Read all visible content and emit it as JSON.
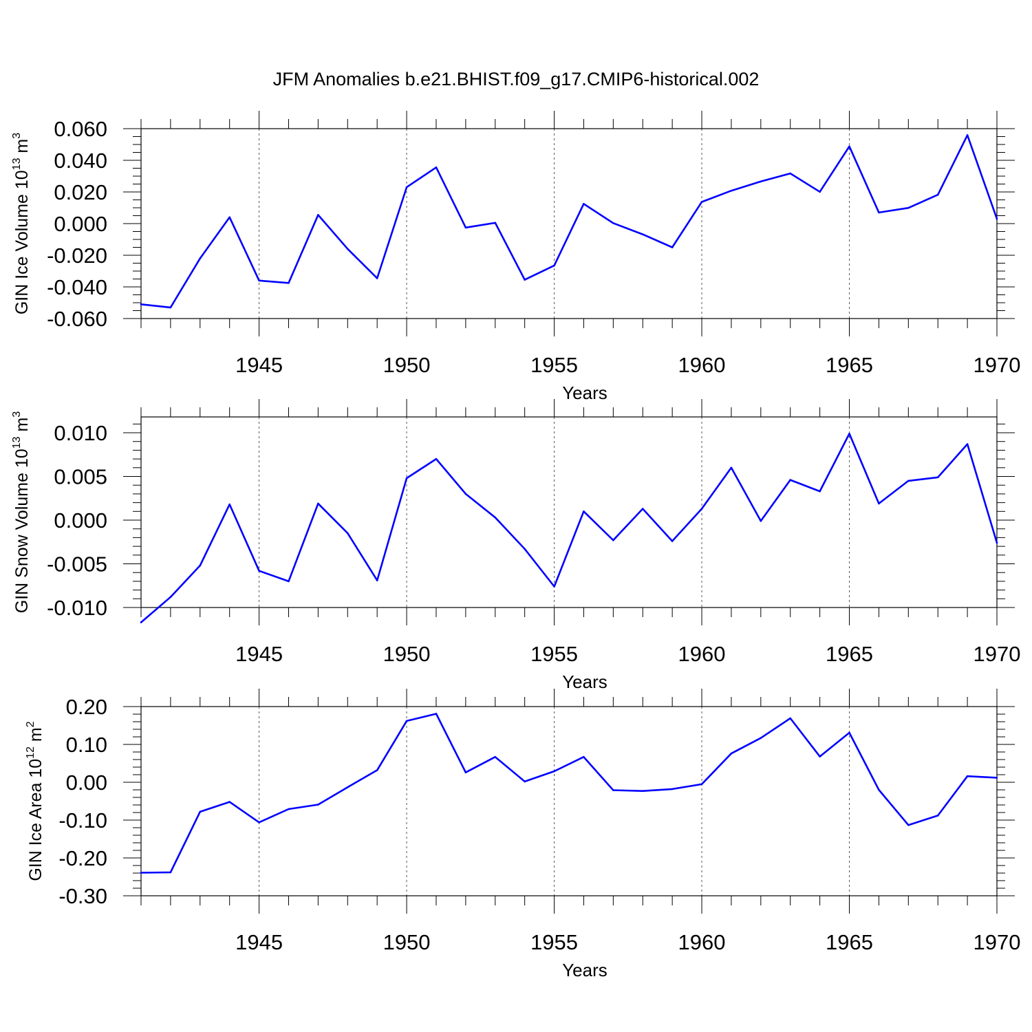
{
  "title": "JFM Anomalies b.e21.BHIST.f09_g17.CMIP6-historical.002",
  "colors": {
    "series": "#0000ff",
    "axis": "#000000",
    "grid": "#555555"
  },
  "chart_data": [
    {
      "type": "line",
      "xlabel": "Years",
      "ylabel": "GIN Ice Volume 10",
      "ylabel_exp": "13",
      "ylabel_unit": " m",
      "ylabel_unit_exp": "3",
      "xlim": [
        1941,
        1970
      ],
      "ylim": [
        -0.06,
        0.06
      ],
      "xticks": [
        1945,
        1950,
        1955,
        1960,
        1965,
        1970
      ],
      "xtick_labels": [
        "1945",
        "1950",
        "1955",
        "1960",
        "1965",
        "1970"
      ],
      "yticks": [
        -0.06,
        -0.04,
        -0.02,
        0.0,
        0.02,
        0.04,
        0.06
      ],
      "ytick_labels": [
        "-0.060",
        "-0.040",
        "-0.020",
        "0.000",
        "0.020",
        "0.040",
        "0.060"
      ],
      "yminor_step": 0.005,
      "grid": "vertical dashed at major x ticks",
      "x": [
        1941,
        1942,
        1943,
        1944,
        1945,
        1946,
        1947,
        1948,
        1949,
        1950,
        1951,
        1952,
        1953,
        1954,
        1955,
        1956,
        1957,
        1958,
        1959,
        1960,
        1961,
        1962,
        1963,
        1964,
        1965,
        1966,
        1967,
        1968,
        1969,
        1970
      ],
      "series": [
        {
          "name": "GIN Ice Volume",
          "values": [
            -0.051,
            -0.053,
            -0.022,
            0.004,
            -0.036,
            -0.0375,
            0.0055,
            -0.016,
            -0.0345,
            0.023,
            0.0355,
            -0.0025,
            0.0005,
            -0.0355,
            -0.0265,
            0.0125,
            0.0003,
            -0.0068,
            -0.015,
            0.0137,
            0.0208,
            0.0266,
            0.0317,
            0.0201,
            0.0488,
            0.007,
            0.0099,
            0.0182,
            0.0559,
            0.003
          ]
        }
      ]
    },
    {
      "type": "line",
      "xlabel": "Years",
      "ylabel": "GIN Snow Volume 10",
      "ylabel_exp": "13",
      "ylabel_unit": " m",
      "ylabel_unit_exp": "3",
      "xlim": [
        1941,
        1970
      ],
      "ylim": [
        -0.012,
        0.012
      ],
      "xticks": [
        1945,
        1950,
        1955,
        1960,
        1965,
        1970
      ],
      "xtick_labels": [
        "1945",
        "1950",
        "1955",
        "1960",
        "1965",
        "1970"
      ],
      "yticks": [
        -0.01,
        -0.005,
        0.0,
        0.005,
        0.01
      ],
      "ytick_labels": [
        "-0.010",
        "-0.005",
        "0.000",
        "0.005",
        "0.010"
      ],
      "yminor_step": 0.001,
      "grid": "vertical dashed at major x ticks",
      "x": [
        1941,
        1942,
        1943,
        1944,
        1945,
        1946,
        1947,
        1948,
        1949,
        1950,
        1951,
        1952,
        1953,
        1954,
        1955,
        1956,
        1957,
        1958,
        1959,
        1960,
        1961,
        1962,
        1963,
        1964,
        1965,
        1966,
        1967,
        1968,
        1969,
        1970
      ],
      "series": [
        {
          "name": "GIN Snow Volume",
          "values": [
            -0.0117,
            -0.0088,
            -0.0052,
            0.0018,
            -0.0058,
            -0.007,
            0.0019,
            -0.0015,
            -0.0069,
            0.0048,
            0.007,
            0.003,
            0.0003,
            -0.0033,
            -0.0076,
            0.001,
            -0.0023,
            0.0013,
            -0.0024,
            0.0013,
            0.006,
            -0.0001,
            0.0046,
            0.0033,
            0.0099,
            0.0019,
            0.0045,
            0.0049,
            0.0087,
            -0.0026
          ]
        }
      ]
    },
    {
      "type": "line",
      "xlabel": "Years",
      "ylabel": "GIN Ice Area 10",
      "ylabel_exp": "12",
      "ylabel_unit": " m",
      "ylabel_unit_exp": "2",
      "xlim": [
        1941,
        1970
      ],
      "ylim": [
        -0.3,
        0.2
      ],
      "xticks": [
        1945,
        1950,
        1955,
        1960,
        1965,
        1970
      ],
      "xtick_labels": [
        "1945",
        "1950",
        "1955",
        "1960",
        "1965",
        "1970"
      ],
      "yticks": [
        -0.3,
        -0.2,
        -0.1,
        0.0,
        0.1,
        0.2
      ],
      "ytick_labels": [
        "-0.30",
        "-0.20",
        "-0.10",
        "0.00",
        "0.10",
        "0.20"
      ],
      "yminor_step": 0.02,
      "grid": "vertical dashed at major x ticks",
      "x": [
        1941,
        1942,
        1943,
        1944,
        1945,
        1946,
        1947,
        1948,
        1949,
        1950,
        1951,
        1952,
        1953,
        1954,
        1955,
        1956,
        1957,
        1958,
        1959,
        1960,
        1961,
        1962,
        1963,
        1964,
        1965,
        1966,
        1967,
        1968,
        1969,
        1970
      ],
      "series": [
        {
          "name": "GIN Ice Area",
          "values": [
            -0.239,
            -0.238,
            -0.078,
            -0.052,
            -0.106,
            -0.071,
            -0.059,
            -0.013,
            0.032,
            0.162,
            0.181,
            0.026,
            0.067,
            0.002,
            0.029,
            0.067,
            -0.021,
            -0.023,
            -0.018,
            -0.005,
            0.076,
            0.117,
            0.169,
            0.068,
            0.131,
            -0.02,
            -0.113,
            -0.088,
            0.016,
            0.012
          ]
        }
      ]
    }
  ]
}
